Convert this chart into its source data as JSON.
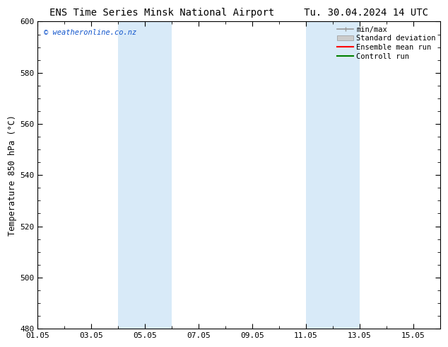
{
  "title_left": "ENS Time Series Minsk National Airport",
  "title_right": "Tu. 30.04.2024 14 UTC",
  "ylabel": "Temperature 850 hPa (°C)",
  "ylim": [
    480,
    600
  ],
  "yticks": [
    480,
    500,
    520,
    540,
    560,
    580,
    600
  ],
  "xlim": [
    0,
    15
  ],
  "xtick_labels": [
    "01.05",
    "03.05",
    "05.05",
    "07.05",
    "09.05",
    "11.05",
    "13.05",
    "15.05"
  ],
  "xtick_positions_days": [
    0,
    2,
    4,
    6,
    8,
    10,
    12,
    14
  ],
  "shade_bands": [
    {
      "xstart_days": 3.0,
      "xend_days": 5.0
    },
    {
      "xstart_days": 10.0,
      "xend_days": 12.0
    }
  ],
  "shade_color": "#d8eaf8",
  "watermark_text": "© weatheronline.co.nz",
  "watermark_color": "#1155cc",
  "legend_labels": [
    "min/max",
    "Standard deviation",
    "Ensemble mean run",
    "Controll run"
  ],
  "legend_colors": [
    "#999999",
    "#bbbbbb",
    "#ff0000",
    "#008000"
  ],
  "background_color": "#ffffff",
  "plot_bg_color": "#ffffff",
  "spine_color": "#000000",
  "tick_color": "#000000",
  "title_fontsize": 10,
  "label_fontsize": 8.5,
  "tick_fontsize": 8,
  "legend_fontsize": 7.5
}
